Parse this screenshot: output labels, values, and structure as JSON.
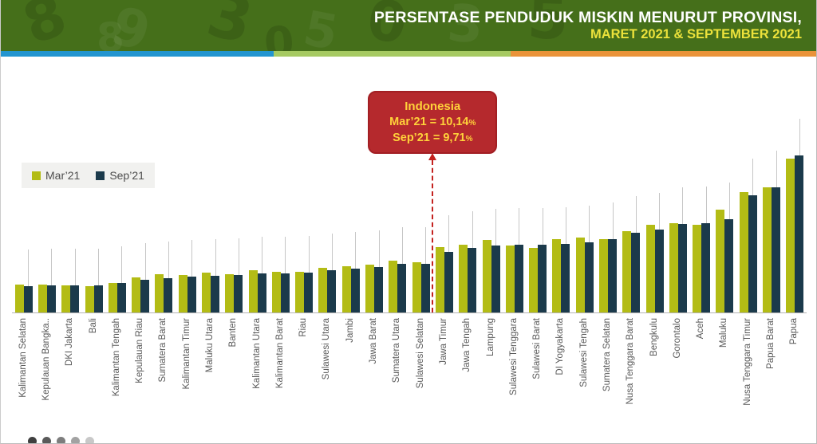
{
  "header": {
    "title_line1": "PERSENTASE PENDUDUK MISKIN MENURUT PROVINSI,",
    "title_line2": "MARET 2021 & SEPTEMBER 2021",
    "bg_color": "#456f1a",
    "title_color": "#ffffff",
    "subtitle_color": "#ece23b",
    "decor_digits": [
      "8",
      "9",
      "3",
      "5",
      "0",
      "3",
      "5",
      "8",
      "0"
    ]
  },
  "stripe": {
    "segments": [
      {
        "color": "#2395d0",
        "width_pct": 33.5
      },
      {
        "color": "#a6ca62",
        "width_pct": 29.0
      },
      {
        "color": "#ea9339",
        "width_pct": 37.5
      }
    ]
  },
  "legend": {
    "items": [
      {
        "label": "Mar’21",
        "color": "#b3bc15"
      },
      {
        "label": "Sep’21",
        "color": "#1b3a4b"
      }
    ]
  },
  "callout": {
    "title": "Indonesia",
    "rows": [
      {
        "label": "Mar’21 = 10,14",
        "pct": "%"
      },
      {
        "label": "Sep’21 = 9,71",
        "pct": "%"
      }
    ],
    "bg_color": "#b5292d",
    "border_color": "#a21e23",
    "text_color": "#ffd23a"
  },
  "chart_data": {
    "type": "bar",
    "title": "Persentase Penduduk Miskin Menurut Provinsi, Maret 2021 & September 2021",
    "unit": "%",
    "ylim": [
      0,
      28
    ],
    "grid": false,
    "legend_position": "upper-left",
    "divider_after_index": 17,
    "national_reference": {
      "label": "Indonesia",
      "mar21": "10,14",
      "sep21": "9,71"
    },
    "categories": [
      "Kalimantan Selatan",
      "Kepulauan Bangka..",
      "DKI Jakarta",
      "Bali",
      "Kalimantan Tengah",
      "Kepulauan Riau",
      "Sumatera Barat",
      "Kalimantan Timur",
      "Maluku Utara",
      "Banten",
      "Kalimantan Utara",
      "Kalimantan Barat",
      "Riau",
      "Sulawesi Utara",
      "Jambi",
      "Jawa Barat",
      "Sumatera Utara",
      "Sulawesi Selatan",
      "Jawa Timur",
      "Jawa Tengah",
      "Lampung",
      "Sulawesi Tenggara",
      "Sulawesi Barat",
      "DI Yogyakarta",
      "Sulawesi Tengah",
      "Sumatera Selatan",
      "Nusa Tenggara Barat",
      "Bengkulu",
      "Gorontalo",
      "Aceh",
      "Maluku",
      "Nusa Tenggara Timur",
      "Papua Barat",
      "Papua"
    ],
    "series": [
      {
        "name": "Mar’21",
        "color": "#b3bc15",
        "label_color": "#595959",
        "values": [
          "4,83",
          "4,90",
          "4,72",
          "4,53",
          "5,16",
          "6,12",
          "6,63",
          "6,54",
          "6,89",
          "6,66",
          "7,36",
          "7,15",
          "7,12",
          "7,77",
          "8,09",
          "8,40",
          "9,01",
          "8,78",
          "11,40",
          "11,79",
          "12,62",
          "11,66",
          "11,29",
          "12,80",
          "13,00",
          "12,84",
          "14,14",
          "15,22",
          "15,61",
          "15,33",
          "17,87",
          "20,99",
          "21,84",
          "26,86"
        ]
      },
      {
        "name": "Sep’21",
        "color": "#1b3a4b",
        "label_color": "#ffffff",
        "values": [
          "4,56",
          "4,67",
          "4,67",
          "4,72",
          "5,16",
          "5,75",
          "6,04",
          "6,27",
          "6,38",
          "6,50",
          "6,83",
          "6,84",
          "7,00",
          "7,36",
          "7,67",
          "7,97",
          "8,49",
          "8,53",
          "10,59",
          "11,25",
          "11,67",
          "11,74",
          "11,85",
          "11,91",
          "12,18",
          "12,79",
          "13,83",
          "14,43",
          "15,41",
          "15,53",
          "16,30",
          "20,44",
          "21,82",
          "27,38"
        ]
      }
    ]
  },
  "pagination": {
    "dot_colors": [
      "#3f3f3f",
      "#5a5a5a",
      "#7d7d7d",
      "#a2a2a2",
      "#c8c8c8"
    ]
  }
}
